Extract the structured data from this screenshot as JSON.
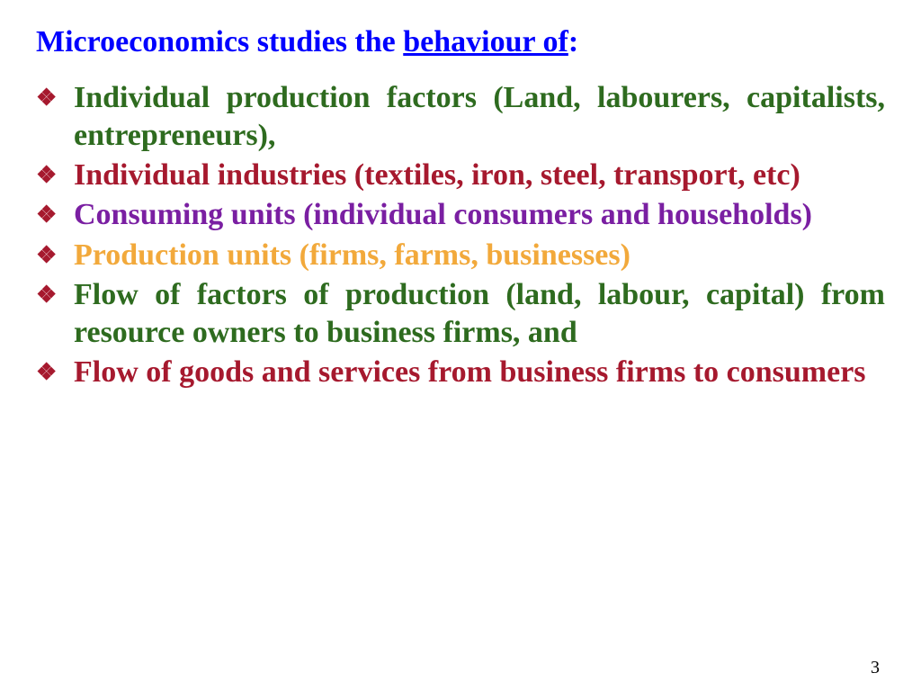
{
  "heading": {
    "prefix": "Microeconomics studies  the ",
    "underlined": "behaviour of",
    "suffix": ":"
  },
  "colors": {
    "heading": "#0000ff",
    "bullet": "#a6192e",
    "item1": "#2e6b1f",
    "item2": "#a6192e",
    "item3": "#7a1fa2",
    "item4": "#f2a93b",
    "item5": "#2e6b1f",
    "item6": "#a6192e",
    "pagenum": "#000000",
    "background": "#ffffff"
  },
  "typography": {
    "font_family": "Times New Roman",
    "heading_fontsize_pt": 26,
    "body_fontsize_pt": 26,
    "weight": "bold",
    "justify": true
  },
  "bullet_glyph": "❖",
  "items": [
    {
      "text": "Individual production factors (Land, labourers, capitalists, entrepreneurs),",
      "color_key": "item1"
    },
    {
      "text": "Individual industries (textiles, iron, steel, transport, etc)",
      "color_key": "item2"
    },
    {
      "text": "Consuming units (individual consumers and households)",
      "color_key": "item3"
    },
    {
      "text": "Production units (firms, farms, businesses)",
      "color_key": "item4"
    },
    {
      "text": "Flow of factors of production (land, labour, capital) from resource owners to business firms, and",
      "color_key": "item5"
    },
    {
      "text": "Flow of goods and services from business firms to consumers",
      "color_key": "item6"
    }
  ],
  "page_number": "3"
}
